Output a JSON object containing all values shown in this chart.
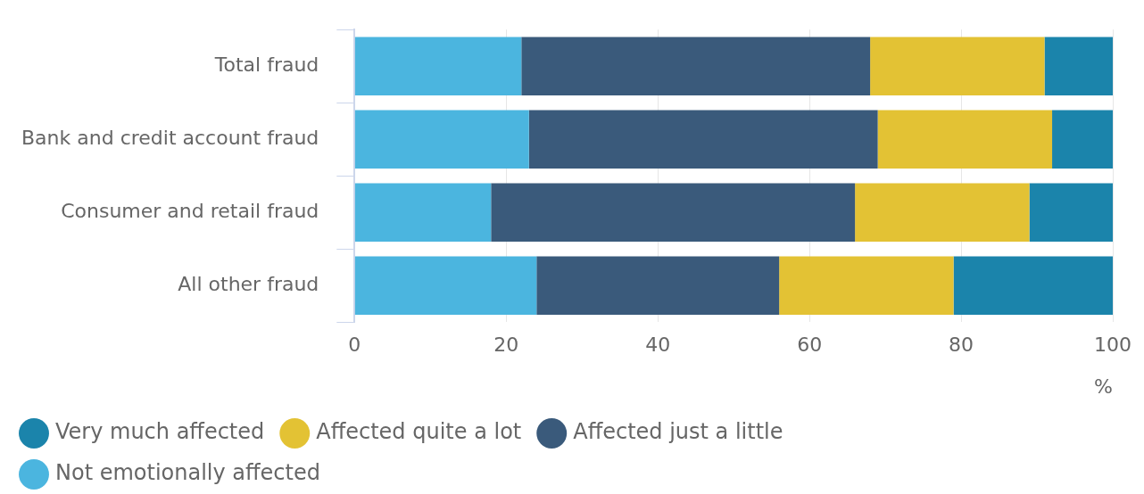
{
  "chart_data": {
    "type": "bar",
    "orientation": "horizontal",
    "stacked": true,
    "xlabel": "%",
    "categories": [
      "Total fraud",
      "Bank and credit account fraud",
      "Consumer and retail fraud",
      "All other fraud"
    ],
    "series": [
      {
        "name": "Not emotionally affected",
        "color": "#4bb5df",
        "values": [
          22,
          23,
          18,
          24
        ]
      },
      {
        "name": "Affected just a little",
        "color": "#3a5a7b",
        "values": [
          46,
          46,
          48,
          32
        ]
      },
      {
        "name": "Affected quite a lot",
        "color": "#e3c234",
        "values": [
          23,
          23,
          23,
          23
        ]
      },
      {
        "name": "Very much affected",
        "color": "#1b84ab",
        "values": [
          9,
          8,
          11,
          21
        ]
      }
    ],
    "xlim": [
      0,
      100
    ],
    "xticks": [
      0,
      20,
      40,
      60,
      80,
      100
    ],
    "grid": "x",
    "legend": "bottom",
    "marker": "circle"
  }
}
